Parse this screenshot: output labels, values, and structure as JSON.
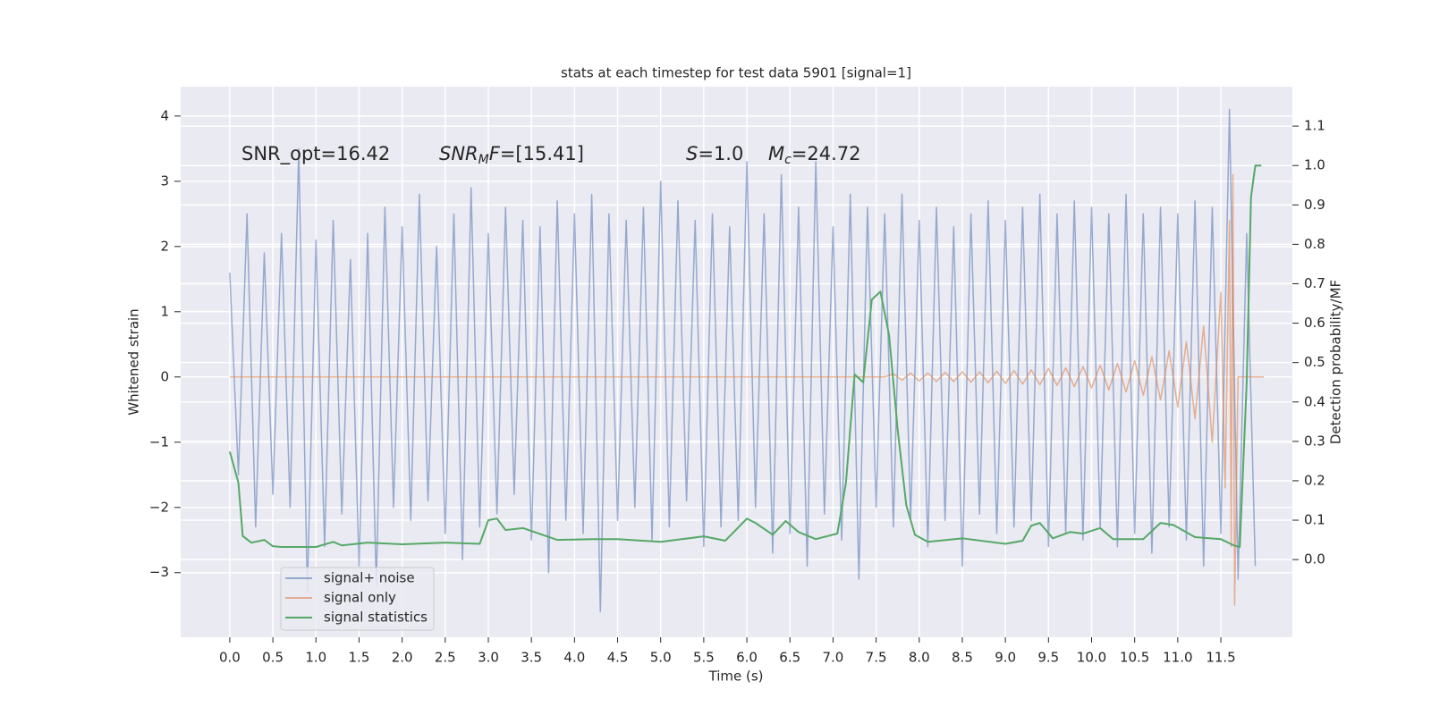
{
  "chart_data": {
    "type": "line",
    "title": "stats at each timestep for test data 5901 [signal=1]",
    "xlabel": "Time (s)",
    "ylabel": "Whitened strain",
    "y2label": "Detection probability/MF",
    "xlim": [
      -0.57,
      12.33
    ],
    "ylim": [
      -3.99,
      4.45
    ],
    "y2lim": [
      -0.197,
      1.2
    ],
    "xticks": [
      {
        "value": 0,
        "label": "0.0"
      },
      0.5,
      {
        "value": 1,
        "label": "1.0"
      },
      1.5,
      {
        "value": 2,
        "label": "2.0"
      },
      2.5,
      {
        "value": 3,
        "label": "3.0"
      },
      3.5,
      {
        "value": 4,
        "label": "4.0"
      },
      4.5,
      {
        "value": 5,
        "label": "5.0"
      },
      5.5,
      {
        "value": 6,
        "label": "6.0"
      },
      6.5,
      {
        "value": 7,
        "label": "7.0"
      },
      7.5,
      {
        "value": 8,
        "label": "8.0"
      },
      8.5,
      {
        "value": 9,
        "label": "9.0"
      },
      9.5,
      {
        "value": 10,
        "label": "10.0"
      },
      10.5,
      {
        "value": 11,
        "label": "11.0"
      },
      11.5
    ],
    "yticks": [
      {
        "value": -3,
        "label": "−3"
      },
      {
        "value": -2,
        "label": "−2"
      },
      {
        "value": -1,
        "label": "−1"
      },
      0,
      1,
      2,
      3,
      4
    ],
    "y2ticks": [
      {
        "value": 0,
        "label": "0.0"
      },
      0.1,
      0.2,
      0.3,
      0.4,
      0.5,
      0.6,
      0.7,
      0.8,
      0.9,
      {
        "value": 1,
        "label": "1.0"
      },
      1.1
    ],
    "grid": true,
    "legend": "lower left",
    "series": [
      {
        "name": "signal+ noise",
        "color": "#4c72b0",
        "opacity": 0.55,
        "axis": "y",
        "x": [
          0,
          0.1,
          0.2,
          0.3,
          0.4,
          0.5,
          0.6,
          0.7,
          0.8,
          0.9,
          1,
          1.1,
          1.2,
          1.3,
          1.4,
          1.5,
          1.6,
          1.7,
          1.8,
          1.9,
          2,
          2.1,
          2.2,
          2.3,
          2.4,
          2.5,
          2.6,
          2.7,
          2.8,
          2.9,
          3,
          3.1,
          3.2,
          3.3,
          3.4,
          3.5,
          3.6,
          3.7,
          3.8,
          3.9,
          4,
          4.1,
          4.2,
          4.3,
          4.4,
          4.5,
          4.6,
          4.7,
          4.8,
          4.9,
          5,
          5.1,
          5.2,
          5.3,
          5.4,
          5.5,
          5.6,
          5.7,
          5.8,
          5.9,
          6,
          6.1,
          6.2,
          6.3,
          6.4,
          6.5,
          6.6,
          6.7,
          6.8,
          6.9,
          7,
          7.1,
          7.2,
          7.3,
          7.4,
          7.5,
          7.6,
          7.7,
          7.8,
          7.9,
          8,
          8.1,
          8.2,
          8.3,
          8.4,
          8.5,
          8.6,
          8.7,
          8.8,
          8.9,
          9,
          9.1,
          9.2,
          9.3,
          9.4,
          9.5,
          9.6,
          9.7,
          9.8,
          9.9,
          10,
          10.1,
          10.2,
          10.3,
          10.4,
          10.5,
          10.6,
          10.7,
          10.8,
          10.9,
          11,
          11.1,
          11.2,
          11.3,
          11.4,
          11.5,
          11.6,
          11.7,
          11.8,
          11.9
        ],
        "values": [
          1.6,
          -1.5,
          2.5,
          -2.3,
          1.9,
          -1.8,
          2.2,
          -2.0,
          3.5,
          -3.3,
          2.1,
          -2.6,
          2.4,
          -2.1,
          1.8,
          -2.9,
          2.2,
          -3.2,
          2.6,
          -2.0,
          2.3,
          -2.2,
          2.8,
          -1.9,
          2.0,
          -2.4,
          2.5,
          -2.8,
          2.9,
          -2.3,
          2.2,
          -2.1,
          2.6,
          -1.8,
          2.4,
          -2.5,
          2.3,
          -3.0,
          2.7,
          -2.2,
          2.5,
          -2.4,
          2.8,
          -3.6,
          2.5,
          -2.2,
          2.4,
          -2.0,
          2.6,
          -2.5,
          3.0,
          -2.3,
          2.7,
          -1.9,
          2.4,
          -2.6,
          2.5,
          -2.3,
          2.3,
          -2.2,
          3.3,
          -2.0,
          2.5,
          -2.7,
          3.1,
          -2.4,
          2.6,
          -2.9,
          3.3,
          -2.1,
          2.3,
          -2.5,
          2.8,
          -3.1,
          2.6,
          -2.0,
          2.5,
          -2.3,
          2.8,
          -2.2,
          2.4,
          -2.6,
          2.6,
          -2.2,
          2.3,
          -2.9,
          2.5,
          -2.1,
          2.7,
          -2.4,
          2.4,
          -2.3,
          2.6,
          -2.2,
          2.8,
          -2.6,
          2.5,
          -2.4,
          2.7,
          -2.5,
          2.6,
          -2.3,
          2.5,
          -2.6,
          2.8,
          -2.4,
          2.5,
          -2.7,
          2.6,
          -2.3,
          2.5,
          -2.5,
          2.7,
          -2.9,
          2.6,
          -2.4,
          4.1,
          -3.1,
          2.2,
          -2.9
        ]
      },
      {
        "name": "signal only",
        "color": "#dd8452",
        "opacity": 0.6,
        "axis": "y",
        "x": [
          0,
          7.6,
          7.7,
          7.8,
          7.9,
          8,
          8.1,
          8.2,
          8.3,
          8.4,
          8.5,
          8.6,
          8.7,
          8.8,
          8.9,
          9,
          9.1,
          9.2,
          9.3,
          9.4,
          9.5,
          9.6,
          9.7,
          9.8,
          9.9,
          10,
          10.1,
          10.2,
          10.3,
          10.4,
          10.5,
          10.6,
          10.7,
          10.8,
          10.9,
          11,
          11.1,
          11.2,
          11.3,
          11.4,
          11.5,
          11.55,
          11.6,
          11.62,
          11.64,
          11.66,
          11.7,
          12
        ],
        "values": [
          0,
          0,
          0.05,
          -0.05,
          0.06,
          -0.06,
          0.06,
          -0.07,
          0.07,
          -0.07,
          0.08,
          -0.08,
          0.08,
          -0.09,
          0.09,
          -0.1,
          0.1,
          -0.11,
          0.11,
          -0.12,
          0.13,
          -0.13,
          0.14,
          -0.15,
          0.16,
          -0.17,
          0.18,
          -0.2,
          0.21,
          -0.23,
          0.25,
          -0.28,
          0.31,
          -0.35,
          0.4,
          -0.46,
          0.54,
          -0.64,
          0.78,
          -1.0,
          1.3,
          -1.7,
          2.4,
          -2.6,
          3.1,
          -3.5,
          0,
          0
        ]
      },
      {
        "name": "signal statistics",
        "color": "#55a868",
        "opacity": 1,
        "axis": "y2",
        "x": [
          0,
          0.1,
          0.15,
          0.25,
          0.4,
          0.5,
          0.6,
          1,
          1.2,
          1.3,
          1.6,
          2,
          2.5,
          2.9,
          3,
          3.1,
          3.2,
          3.4,
          3.8,
          4.2,
          4.5,
          5,
          5.5,
          5.75,
          6,
          6.1,
          6.3,
          6.45,
          6.6,
          6.8,
          7.05,
          7.15,
          7.25,
          7.35,
          7.45,
          7.55,
          7.65,
          7.75,
          7.85,
          7.95,
          8.1,
          8.5,
          9,
          9.2,
          9.3,
          9.4,
          9.55,
          9.75,
          9.9,
          10.1,
          10.25,
          10.6,
          10.8,
          10.95,
          11.2,
          11.5,
          11.65,
          11.72,
          11.8,
          11.85,
          11.9,
          11.97
        ],
        "values": [
          0.274,
          0.195,
          0.06,
          0.043,
          0.05,
          0.034,
          0.032,
          0.032,
          0.045,
          0.036,
          0.043,
          0.039,
          0.043,
          0.04,
          0.1,
          0.104,
          0.075,
          0.08,
          0.05,
          0.052,
          0.052,
          0.045,
          0.059,
          0.048,
          0.104,
          0.093,
          0.063,
          0.098,
          0.07,
          0.052,
          0.066,
          0.195,
          0.47,
          0.45,
          0.66,
          0.68,
          0.57,
          0.33,
          0.138,
          0.063,
          0.045,
          0.054,
          0.04,
          0.048,
          0.086,
          0.093,
          0.054,
          0.07,
          0.066,
          0.08,
          0.052,
          0.052,
          0.093,
          0.088,
          0.057,
          0.052,
          0.036,
          0.032,
          0.45,
          0.92,
          1.0,
          1.0
        ]
      }
    ],
    "annotations": [
      {
        "parts": [
          {
            "text": "SNR_opt=16.42"
          }
        ]
      },
      {
        "parts": [
          {
            "text": "SNR",
            "italic": true
          },
          {
            "text": "M",
            "italic": true,
            "sub": true
          },
          {
            "text": "F",
            "italic": true
          },
          {
            "text": "=[15.41]"
          }
        ]
      },
      {
        "parts": [
          {
            "text": "S",
            "italic": true
          },
          {
            "text": "=1.0"
          }
        ]
      },
      {
        "parts": [
          {
            "text": "M",
            "italic": true
          },
          {
            "text": "c",
            "italic": true,
            "sub": true
          },
          {
            "text": "=24.72"
          }
        ]
      }
    ]
  }
}
